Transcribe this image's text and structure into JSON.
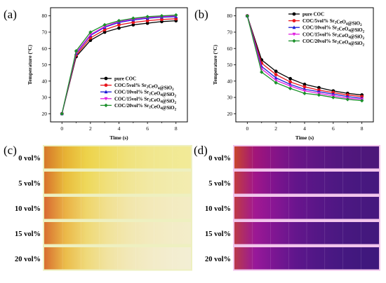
{
  "panel_labels": [
    "(a)",
    "(b)",
    "(c)",
    "(d)"
  ],
  "chart_data": [
    {
      "type": "line",
      "panel": "(a)",
      "title": "",
      "xlabel": "Time (s)",
      "ylabel": "Temperature (°C)",
      "xlim": [
        -0.8,
        8.8
      ],
      "ylim": [
        15,
        85
      ],
      "x": [
        0,
        1,
        2,
        3,
        4,
        5,
        6,
        7,
        8
      ],
      "xticks": [
        0,
        2,
        4,
        6,
        8
      ],
      "yticks": [
        20,
        30,
        40,
        50,
        60,
        70,
        80
      ],
      "legend_position": "bottom-right",
      "series": [
        {
          "name": "pure COC",
          "sub": "",
          "sub2": "",
          "color": "#000000",
          "values": [
            20,
            55,
            65,
            70,
            72.5,
            74.5,
            75.5,
            76.5,
            77
          ]
        },
        {
          "name": "COC/5vol% Sr",
          "sub": "2",
          "mid": "CeO",
          "sub2": "4",
          "tail": "@SiO",
          "sub3": "2",
          "color": "#e8141b",
          "values": [
            20,
            56,
            66.5,
            71.5,
            74.5,
            76,
            77,
            77.8,
            78.2
          ]
        },
        {
          "name": "COC/10vol% Sr",
          "sub": "2",
          "mid": "CeO",
          "sub2": "4",
          "tail": "@SiO",
          "sub3": "2",
          "color": "#1a1ad6",
          "values": [
            20,
            57,
            68,
            73,
            76,
            77.5,
            78.5,
            79.2,
            79.5
          ]
        },
        {
          "name": "COC/15vol% Sr",
          "sub": "2",
          "mid": "CeO",
          "sub2": "4",
          "tail": "@SiO",
          "sub3": "2",
          "color": "#e020e0",
          "values": [
            20,
            57.5,
            68.5,
            73.5,
            76.5,
            78,
            79,
            79.6,
            80
          ]
        },
        {
          "name": "COC/20vol% Sr",
          "sub": "2",
          "mid": "CeO",
          "sub2": "4",
          "tail": "@SiO",
          "sub3": "2",
          "color": "#1a8f2a",
          "values": [
            20,
            58.5,
            70,
            74.5,
            77,
            78.5,
            79.5,
            80,
            80.5
          ]
        }
      ]
    },
    {
      "type": "line",
      "panel": "(b)",
      "title": "",
      "xlabel": "Time (s)",
      "ylabel": "Temperature (°C)",
      "xlim": [
        -0.8,
        8.8
      ],
      "ylim": [
        15,
        85
      ],
      "x": [
        0,
        1,
        2,
        3,
        4,
        5,
        6,
        7,
        8
      ],
      "xticks": [
        0,
        2,
        4,
        6,
        8
      ],
      "yticks": [
        20,
        30,
        40,
        50,
        60,
        70,
        80
      ],
      "legend_position": "top-right",
      "series": [
        {
          "name": "pure COC",
          "sub": "",
          "sub2": "",
          "color": "#000000",
          "values": [
            80,
            53,
            46,
            41.5,
            38,
            36,
            34,
            32.5,
            31.5
          ]
        },
        {
          "name": "COC/5vol% Sr",
          "sub": "2",
          "mid": "CeO",
          "sub2": "4",
          "tail": "@SiO",
          "sub3": "2",
          "color": "#e8141b",
          "values": [
            80,
            51,
            44,
            39.5,
            36.5,
            34.5,
            33,
            31.5,
            30.5
          ]
        },
        {
          "name": "COC/10vol% Sr",
          "sub": "2",
          "mid": "CeO",
          "sub2": "4",
          "tail": "@SiO",
          "sub3": "2",
          "color": "#1a1ad6",
          "values": [
            80,
            49,
            42,
            38,
            35,
            33.5,
            32,
            30.5,
            29.5
          ]
        },
        {
          "name": "COC/15vol% Sr",
          "sub": "2",
          "mid": "CeO",
          "sub2": "4",
          "tail": "@SiO",
          "sub3": "2",
          "color": "#e020e0",
          "values": [
            80,
            47.5,
            40.5,
            37,
            34,
            32.5,
            31,
            29.5,
            28.8
          ]
        },
        {
          "name": "COC/20vol% Sr",
          "sub": "2",
          "mid": "CeO",
          "sub2": "4",
          "tail": "@SiO",
          "sub3": "2",
          "color": "#1a8f2a",
          "values": [
            80,
            45.5,
            39,
            35.5,
            32.5,
            31.5,
            30,
            28.8,
            28
          ]
        }
      ]
    }
  ],
  "thermal_panels": {
    "rows": [
      "0 vol%",
      "5 vol%",
      "10 vol%",
      "15 vol%",
      "20 vol%"
    ],
    "heating": {
      "panel": "(c)",
      "gradients": [
        [
          "#d6782a",
          "#e7b234",
          "#edd24a",
          "#efdc62",
          "#f0e27c",
          "#f1e68c",
          "#f1e993",
          "#f2ea98"
        ],
        [
          "#d8722c",
          "#e9bc3c",
          "#eed85a",
          "#f0e07c",
          "#f1e594",
          "#f2e9a4",
          "#f2ebac",
          "#f3ecb0"
        ],
        [
          "#d86a32",
          "#eab044",
          "#efd56a",
          "#f1e090",
          "#f2e6aa",
          "#f3e9b8",
          "#f3ebc0",
          "#f3ecc4"
        ],
        [
          "#d87030",
          "#ebb848",
          "#efd874",
          "#f1e298",
          "#f2e7b0",
          "#f3eabe",
          "#f3ecc6",
          "#f3edca"
        ],
        [
          "#d86e30",
          "#ebbc4a",
          "#efd97a",
          "#f1e3a0",
          "#f2e8b8",
          "#f3ebc6",
          "#f3edcf",
          "#f3eed4"
        ]
      ]
    },
    "cooling": {
      "panel": "(d)",
      "gradients": [
        [
          "#c8462e",
          "#a2157a",
          "#851488",
          "#6c1588",
          "#5e1684",
          "#541780",
          "#4f177c",
          "#4c177a"
        ],
        [
          "#c23c40",
          "#a0168a",
          "#7c148e",
          "#62158a",
          "#561786",
          "#4d1882",
          "#481880",
          "#46187e"
        ],
        [
          "#be3a46",
          "#a21892",
          "#861694",
          "#6a158e",
          "#5a1688",
          "#4f1784",
          "#491880",
          "#45187e"
        ],
        [
          "#bc3a48",
          "#9c1894",
          "#7e1692",
          "#64168c",
          "#551786",
          "#4b1882",
          "#45187e",
          "#42187c"
        ],
        [
          "#ba3a4a",
          "#98189a",
          "#781692",
          "#5e168c",
          "#501786",
          "#471882",
          "#41187e",
          "#3e187c"
        ]
      ]
    }
  }
}
